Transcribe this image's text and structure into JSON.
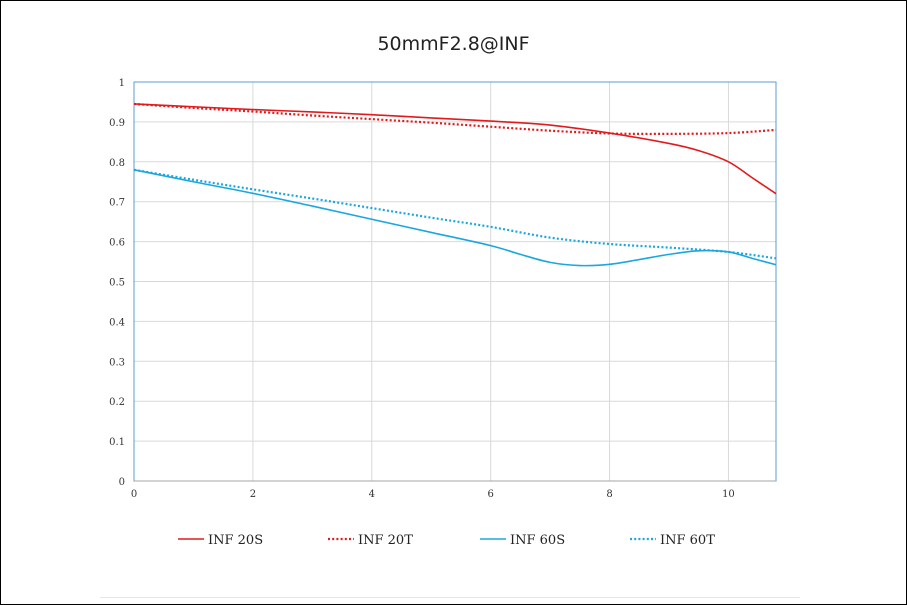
{
  "chart_data": {
    "type": "line",
    "title": "50mmF2.8@INF",
    "xlabel": "",
    "ylabel": "",
    "xlim": [
      0,
      10.8
    ],
    "ylim": [
      0,
      1
    ],
    "xticks": [
      0,
      2,
      4,
      6,
      8,
      10
    ],
    "yticks": [
      0,
      0.1,
      0.2,
      0.3,
      0.4,
      0.5,
      0.6,
      0.7,
      0.8,
      0.9,
      1
    ],
    "grid": true,
    "legend_position": "bottom",
    "series": [
      {
        "name": "INF 20S",
        "color": "#e31a1c",
        "style": "solid",
        "x": [
          0,
          1,
          2,
          3,
          4,
          5,
          6,
          7,
          8,
          9,
          9.5,
          10,
          10.4,
          10.8
        ],
        "y": [
          0.945,
          0.938,
          0.931,
          0.925,
          0.918,
          0.91,
          0.902,
          0.892,
          0.872,
          0.846,
          0.828,
          0.8,
          0.76,
          0.72
        ]
      },
      {
        "name": "INF 20T",
        "color": "#e31a1c",
        "style": "dotted",
        "x": [
          0,
          1,
          2,
          3,
          4,
          5,
          6,
          7,
          8,
          9,
          10,
          10.8
        ],
        "y": [
          0.945,
          0.935,
          0.926,
          0.916,
          0.907,
          0.898,
          0.888,
          0.878,
          0.871,
          0.87,
          0.872,
          0.88
        ]
      },
      {
        "name": "INF 60S",
        "color": "#1aa7e0",
        "style": "solid",
        "x": [
          0,
          1,
          2,
          3,
          4,
          5,
          6,
          6.5,
          7,
          7.5,
          8,
          8.5,
          9,
          9.5,
          10,
          10.4,
          10.8
        ],
        "y": [
          0.78,
          0.75,
          0.721,
          0.689,
          0.656,
          0.623,
          0.59,
          0.568,
          0.548,
          0.54,
          0.543,
          0.555,
          0.568,
          0.577,
          0.574,
          0.558,
          0.542
        ]
      },
      {
        "name": "INF 60T",
        "color": "#1aa7e0",
        "style": "dotted",
        "x": [
          0,
          1,
          2,
          3,
          4,
          5,
          6,
          7,
          8,
          9,
          10,
          10.8
        ],
        "y": [
          0.78,
          0.755,
          0.731,
          0.708,
          0.684,
          0.66,
          0.637,
          0.61,
          0.594,
          0.585,
          0.574,
          0.558
        ]
      }
    ]
  }
}
